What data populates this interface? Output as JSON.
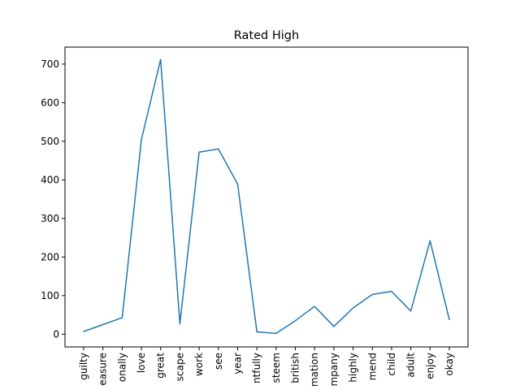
{
  "chart_data": {
    "type": "line",
    "title": "Rated High",
    "xlabel": "",
    "ylabel": "",
    "categories": [
      "guilty",
      "pleasure",
      "personally",
      "love",
      "great",
      "escape",
      "work",
      "see",
      "year",
      "thoughtfully",
      "esteem",
      "british",
      "animation",
      "company",
      "highly",
      "recommend",
      "child",
      "adult",
      "enjoy",
      "okay"
    ],
    "category_display": [
      "guilty",
      "easure",
      "onally",
      "love",
      "great",
      "scape",
      "work",
      "see",
      "year",
      "ntfully",
      "steem",
      "british",
      "mation",
      "mpany",
      "highly",
      "mend",
      "child",
      "adult",
      "enjoy",
      "okay"
    ],
    "series": [
      {
        "values": [
          7,
          25,
          43,
          505,
          712,
          27,
          472,
          480,
          389,
          6,
          2,
          35,
          72,
          20,
          68,
          103,
          111,
          60,
          242,
          38
        ]
      }
    ],
    "ylim": [
      -33,
      744
    ],
    "yticks": [
      0,
      100,
      200,
      300,
      400,
      500,
      600,
      700
    ],
    "grid": false,
    "line_color": "#1f77b4"
  }
}
